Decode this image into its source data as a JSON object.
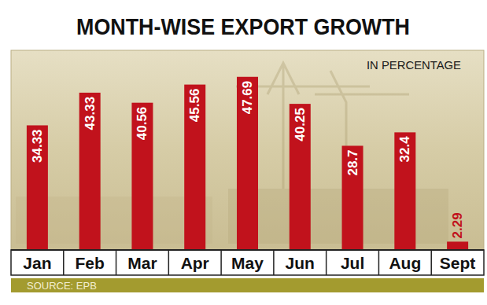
{
  "chart_data": {
    "type": "bar",
    "title": "MONTH-WISE EXPORT GROWTH",
    "subtitle": "IN PERCENTAGE",
    "source": "SOURCE: EPB",
    "categories": [
      "Jan",
      "Feb",
      "Mar",
      "Apr",
      "May",
      "Jun",
      "Jul",
      "Aug",
      "Sept"
    ],
    "values": [
      34.33,
      43.33,
      40.56,
      45.56,
      47.69,
      40.25,
      28.7,
      32.4,
      2.29
    ],
    "color": "#c1121c",
    "ylim": [
      0,
      55
    ],
    "tick_labels": "x",
    "data_labels": true
  }
}
